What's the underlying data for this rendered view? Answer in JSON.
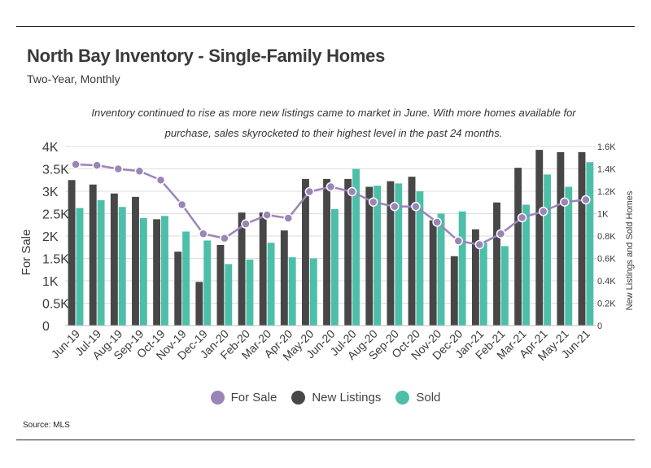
{
  "title": "North Bay Inventory - Single-Family Homes",
  "subtitle": "Two-Year, Monthly",
  "note": "Inventory continued to rise as more new listings came to market in June. With more homes available for purchase, sales skyrocketed to their highest level in the past 24 months.",
  "source": "Source:  MLS",
  "colors": {
    "for_sale": "#9b84b8",
    "new_listings": "#474747",
    "sold": "#4dbfa8"
  },
  "chart_data": {
    "type": "bar",
    "categories": [
      "Jun-19",
      "Jul-19",
      "Aug-19",
      "Sep-19",
      "Oct-19",
      "Nov-19",
      "Dec-19",
      "Jan-20",
      "Feb-20",
      "Mar-20",
      "Apr-20",
      "May-20",
      "Jun-20",
      "Jul-20",
      "Aug-20",
      "Sep-20",
      "Oct-20",
      "Nov-20",
      "Dec-20",
      "Jan-21",
      "Feb-21",
      "Mar-21",
      "Apr-21",
      "May-21",
      "Jun-21"
    ],
    "ylabel": "For Sale",
    "y2label": "New Listings and Sold Homes",
    "ylim": [
      0,
      4000
    ],
    "y2lim": [
      0,
      1600
    ],
    "yticks": [
      "0",
      "0.5K",
      "1K",
      "1.5K",
      "2K",
      "2.5K",
      "3K",
      "3.5K",
      "4K"
    ],
    "y2ticks": [
      "0",
      "0.2K",
      "0.4K",
      "0.6K",
      "0.8K",
      "1K",
      "1.2K",
      "1.4K",
      "1.6K"
    ],
    "series": [
      {
        "name": "For Sale",
        "type": "line",
        "axis": "left",
        "values": [
          3600,
          3580,
          3500,
          3450,
          3250,
          2700,
          2050,
          1950,
          2270,
          2470,
          2400,
          2990,
          3100,
          2990,
          2760,
          2660,
          2660,
          2310,
          1890,
          1810,
          2050,
          2410,
          2550,
          2760,
          2810
        ]
      },
      {
        "name": "New Listings",
        "type": "bar",
        "axis": "right",
        "values": [
          1300,
          1260,
          1180,
          1150,
          950,
          660,
          390,
          720,
          1010,
          1010,
          850,
          1310,
          1310,
          1310,
          1240,
          1290,
          1330,
          940,
          620,
          860,
          1100,
          1410,
          1570,
          1550,
          1550
        ]
      },
      {
        "name": "Sold",
        "type": "bar",
        "axis": "right",
        "values": [
          1050,
          1120,
          1060,
          960,
          980,
          840,
          760,
          550,
          590,
          740,
          610,
          600,
          1040,
          1400,
          1250,
          1270,
          1200,
          1000,
          1020,
          740,
          710,
          1080,
          1350,
          1240,
          1460
        ]
      }
    ],
    "legend_position": "bottom",
    "grid": true
  }
}
